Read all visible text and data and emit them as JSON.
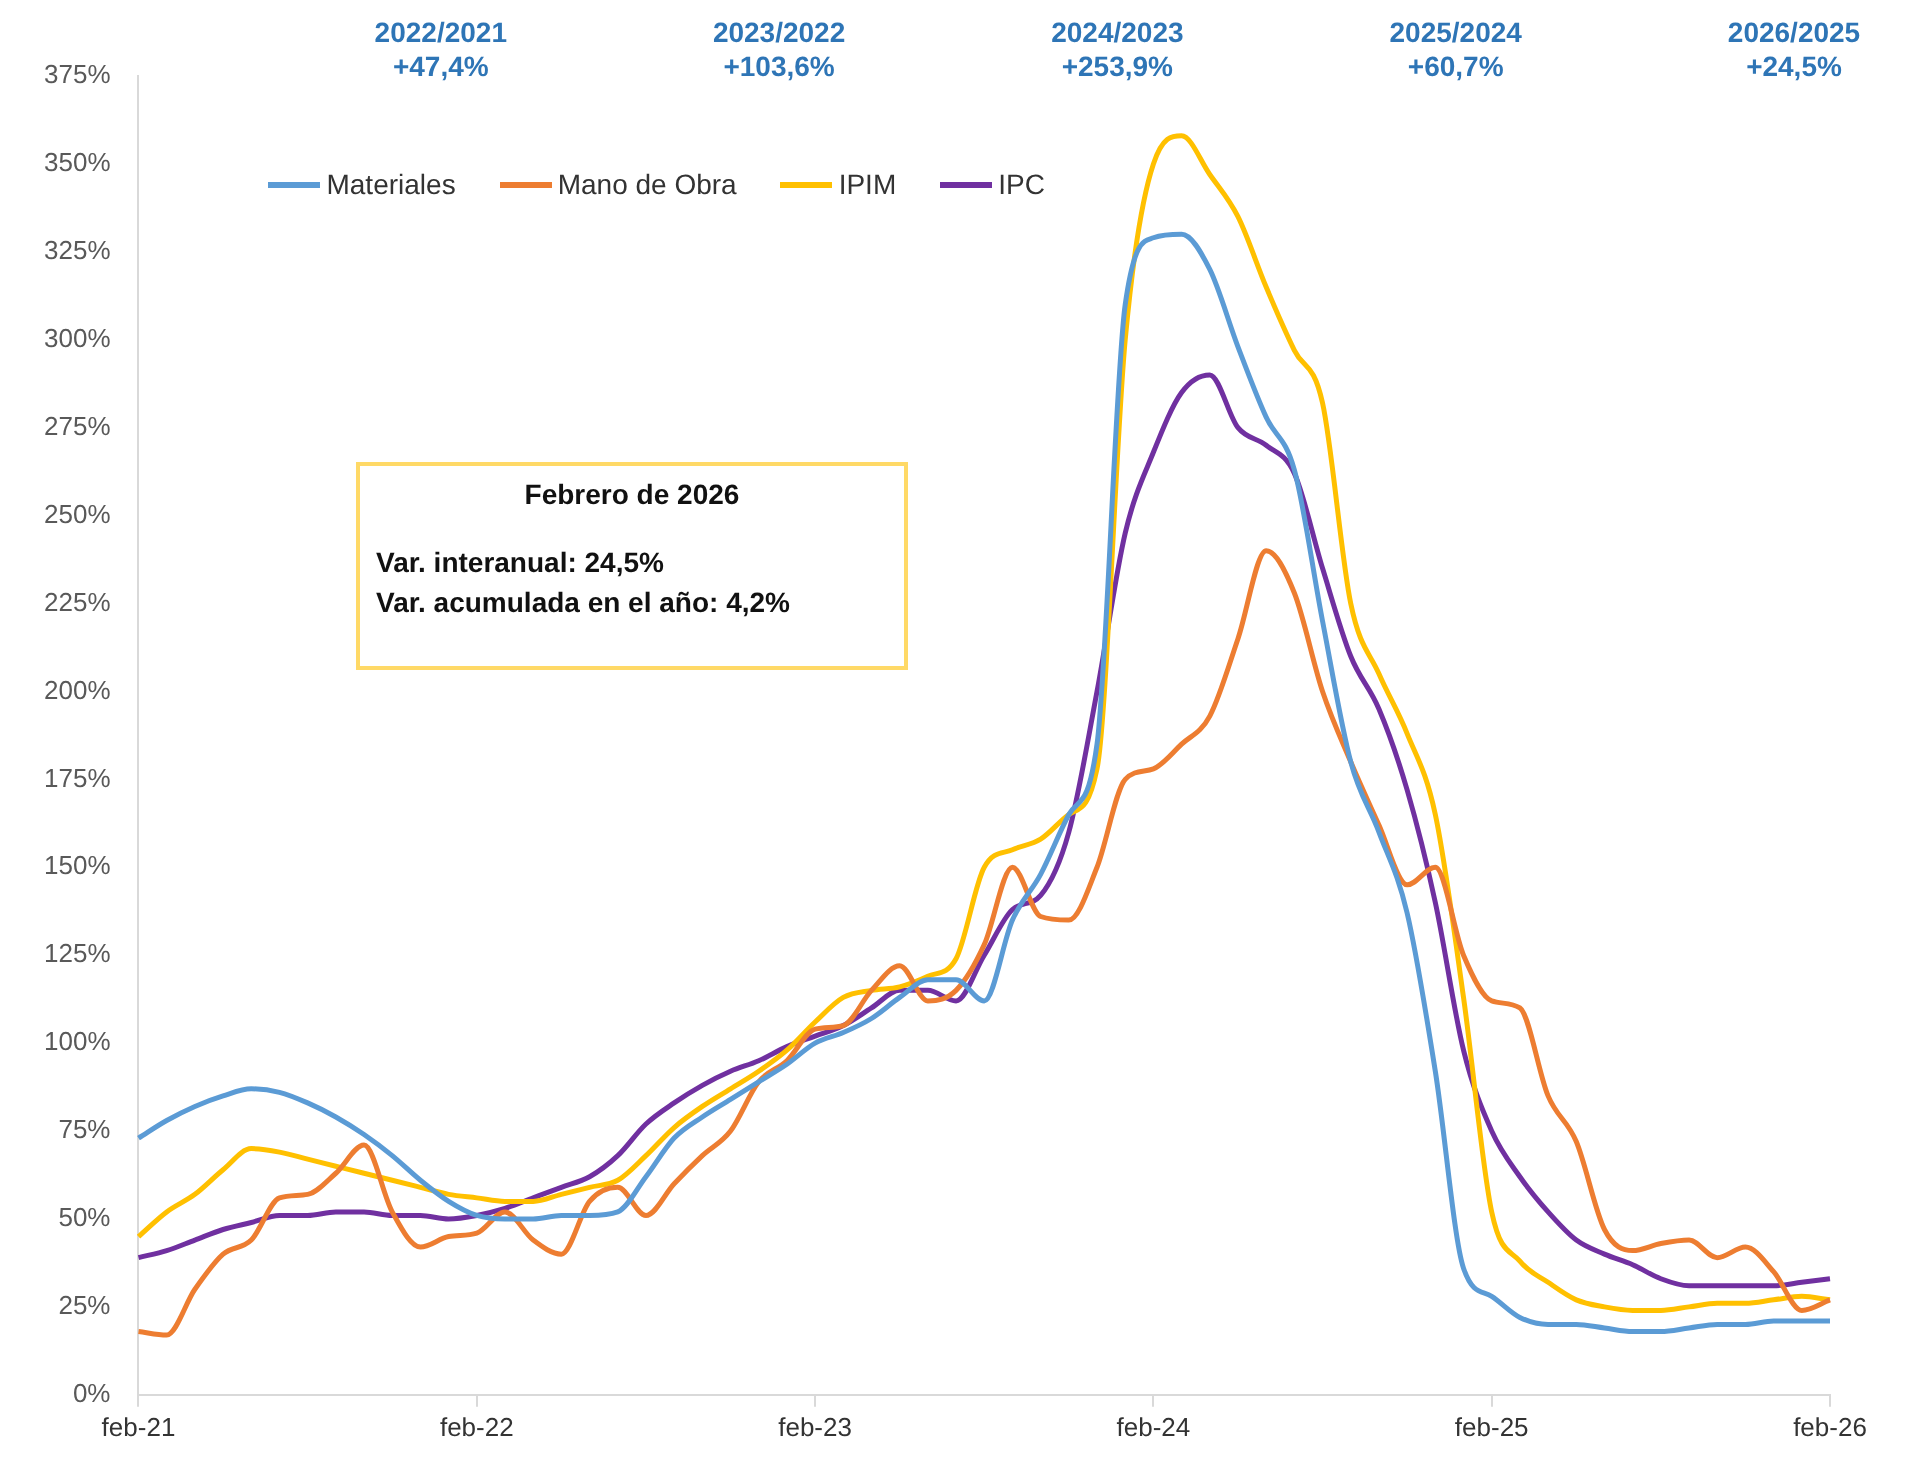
{
  "chart_data": {
    "type": "line",
    "categories": [
      "feb-21",
      null,
      null,
      null,
      null,
      null,
      null,
      null,
      null,
      null,
      null,
      null,
      "feb-22",
      null,
      null,
      null,
      null,
      null,
      null,
      null,
      null,
      null,
      null,
      null,
      "feb-23",
      null,
      null,
      null,
      null,
      null,
      null,
      null,
      null,
      null,
      null,
      null,
      "feb-24",
      null,
      null,
      null,
      null,
      null,
      null,
      null,
      null,
      null,
      null,
      null,
      "feb-25",
      null,
      null,
      null,
      null,
      null,
      null,
      null,
      null,
      null,
      null,
      null,
      "feb-26"
    ],
    "series": [
      {
        "name": "Materiales",
        "color": "#5b9bd5",
        "values": [
          73,
          78,
          82,
          85,
          87,
          86,
          83,
          79,
          74,
          68,
          61,
          55,
          51,
          50,
          50,
          51,
          51,
          52,
          62,
          73,
          79,
          84,
          89,
          94,
          100,
          103,
          107,
          113,
          118,
          118,
          112,
          135,
          148,
          165,
          185,
          310,
          329,
          330,
          320,
          298,
          278,
          263,
          220,
          180,
          160,
          137,
          92,
          36,
          28,
          22,
          20,
          20,
          19,
          18,
          18,
          19,
          20,
          20,
          21,
          21,
          21
        ]
      },
      {
        "name": "Mano de Obra",
        "color": "#ed7d31",
        "values": [
          18,
          17,
          30,
          40,
          44,
          56,
          57,
          63,
          71,
          52,
          42,
          45,
          46,
          52,
          44,
          40,
          55,
          59,
          51,
          60,
          68,
          75,
          89,
          95,
          104,
          105,
          115,
          122,
          112,
          115,
          128,
          150,
          136,
          135,
          150,
          175,
          178,
          185,
          193,
          215,
          240,
          228,
          200,
          180,
          162,
          145,
          150,
          125,
          112,
          110,
          85,
          72,
          47,
          41,
          43,
          44,
          39,
          42,
          35,
          24,
          27
        ]
      },
      {
        "name": "IPIM",
        "color": "#ffc000",
        "values": [
          45,
          52,
          57,
          64,
          70,
          69,
          67,
          65,
          63,
          61,
          59,
          57,
          56,
          55,
          55,
          57,
          59,
          61,
          68,
          76,
          82,
          87,
          92,
          98,
          106,
          113,
          115,
          116,
          119,
          124,
          150,
          155,
          158,
          165,
          178,
          300,
          350,
          358,
          347,
          335,
          315,
          297,
          282,
          225,
          205,
          188,
          165,
          113,
          52,
          38,
          32,
          27,
          25,
          24,
          24,
          25,
          26,
          26,
          27,
          28,
          27
        ]
      },
      {
        "name": "IPC",
        "color": "#7030a0",
        "values": [
          39,
          41,
          44,
          47,
          49,
          51,
          51,
          52,
          52,
          51,
          51,
          50,
          51,
          53,
          56,
          59,
          62,
          68,
          77,
          83,
          88,
          92,
          95,
          99,
          102,
          105,
          110,
          115,
          115,
          112,
          125,
          138,
          142,
          160,
          200,
          245,
          268,
          285,
          290,
          275,
          270,
          262,
          235,
          210,
          195,
          172,
          140,
          98,
          75,
          62,
          52,
          44,
          40,
          37,
          33,
          31,
          31,
          31,
          31,
          32,
          33
        ]
      }
    ],
    "ylim": [
      0,
      375
    ],
    "yticks": [
      {
        "value": 0,
        "label": "0%"
      },
      {
        "value": 25,
        "label": "25%"
      },
      {
        "value": 50,
        "label": "50%"
      },
      {
        "value": 75,
        "label": "75%"
      },
      {
        "value": 100,
        "label": "100%"
      },
      {
        "value": 125,
        "label": "125%"
      },
      {
        "value": 150,
        "label": "150%"
      },
      {
        "value": 175,
        "label": "175%"
      },
      {
        "value": 200,
        "label": "200%"
      },
      {
        "value": 225,
        "label": "225%"
      },
      {
        "value": 250,
        "label": "250%"
      },
      {
        "value": 275,
        "label": "275%"
      },
      {
        "value": 300,
        "label": "300%"
      },
      {
        "value": 325,
        "label": "325%"
      },
      {
        "value": 350,
        "label": "350%"
      },
      {
        "value": 375,
        "label": "375%"
      }
    ],
    "grid": false,
    "legend": "top left",
    "annotations": [
      "2022/2021",
      "+47,4%",
      "2023/2022",
      "+103,6%",
      "2024/2023",
      "+253,9%",
      "2025/2024",
      "+60,7%",
      "2026/2025",
      "+24,5%",
      "Febrero de 2026",
      "Var. interanual: 24,5%",
      "Var. acumulada en el año: 4,2%"
    ]
  }
}
